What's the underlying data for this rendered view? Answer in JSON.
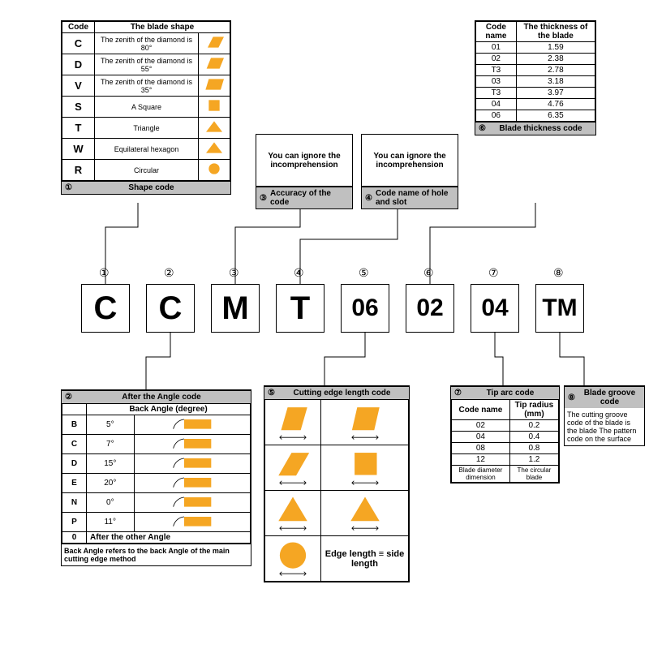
{
  "colors": {
    "accent": "#f5a623",
    "header_bg": "#c0c0c0"
  },
  "main_code": [
    "C",
    "C",
    "M",
    "T",
    "06",
    "02",
    "04",
    "TM"
  ],
  "positions": [
    "①",
    "②",
    "③",
    "④",
    "⑤",
    "⑥",
    "⑦",
    "⑧"
  ],
  "panels": {
    "p1": {
      "title": "Shape code",
      "col1": "Code",
      "col2": "The blade shape",
      "rows": [
        {
          "c": "C",
          "d": "The zenith of the diamond is 80°",
          "shape": "rhomb80"
        },
        {
          "c": "D",
          "d": "The zenith of the diamond is 55°",
          "shape": "rhomb55"
        },
        {
          "c": "V",
          "d": "The zenith of the diamond is 35°",
          "shape": "rhomb35"
        },
        {
          "c": "S",
          "d": "A Square",
          "shape": "square"
        },
        {
          "c": "T",
          "d": "Triangle",
          "shape": "triangle"
        },
        {
          "c": "W",
          "d": "Equilateral hexagon",
          "shape": "tri-rounded"
        },
        {
          "c": "R",
          "d": "Circular",
          "shape": "circle"
        }
      ]
    },
    "p2": {
      "title": "After the Angle code",
      "col1": "",
      "col2": "Back Angle (degree)",
      "rows": [
        {
          "c": "B",
          "v": "5°"
        },
        {
          "c": "C",
          "v": "7°"
        },
        {
          "c": "D",
          "v": "15°"
        },
        {
          "c": "E",
          "v": "20°"
        },
        {
          "c": "N",
          "v": "0°"
        },
        {
          "c": "P",
          "v": "11°"
        },
        {
          "c": "0",
          "v": "After the other Angle"
        }
      ],
      "footnote": "Back Angle refers to the back Angle of the main cutting edge method"
    },
    "p3": {
      "title": "Accuracy of the code",
      "text": "You can ignore the incomprehension"
    },
    "p4": {
      "title": "Code name of hole and slot",
      "text": "You can ignore the incomprehension"
    },
    "p5": {
      "title": "Cutting edge length code",
      "caption": "Edge length ≡ side length"
    },
    "p6": {
      "title": "Blade thickness code",
      "col1": "Code name",
      "col2": "The thickness of the blade",
      "rows": [
        {
          "c": "01",
          "v": "1.59"
        },
        {
          "c": "02",
          "v": "2.38"
        },
        {
          "c": "T3",
          "v": "2.78"
        },
        {
          "c": "03",
          "v": "3.18"
        },
        {
          "c": "T3",
          "v": "3.97"
        },
        {
          "c": "04",
          "v": "4.76"
        },
        {
          "c": "06",
          "v": "6.35"
        }
      ]
    },
    "p7": {
      "title": "Tip arc code",
      "col1": "Code name",
      "col2": "Tip radius (mm)",
      "rows": [
        {
          "c": "02",
          "v": "0.2"
        },
        {
          "c": "04",
          "v": "0.4"
        },
        {
          "c": "08",
          "v": "0.8"
        },
        {
          "c": "12",
          "v": "1.2"
        }
      ],
      "foot_c": "Blade diameter dimension",
      "foot_v": "The circular blade"
    },
    "p8": {
      "title": "Blade groove code",
      "text": "The cutting groove code of the blade is the blade The pattern code on the surface"
    }
  }
}
